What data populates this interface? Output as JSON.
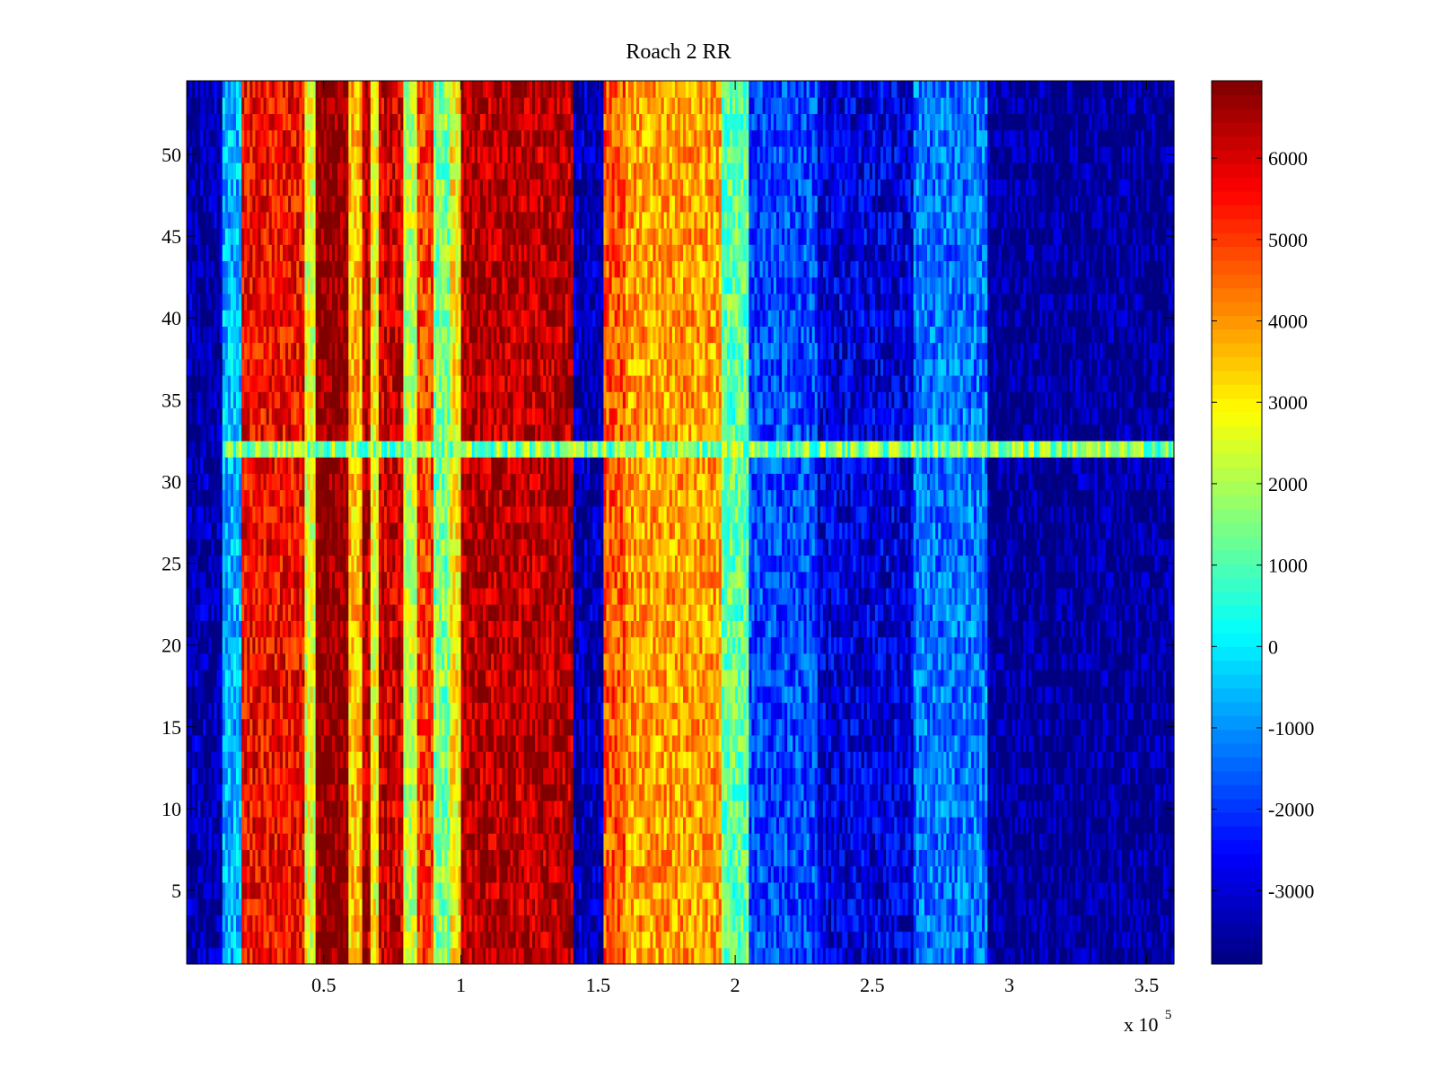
{
  "chart_data": {
    "type": "heatmap",
    "title": "Roach 2 RR",
    "xlabel": "",
    "ylabel": "",
    "x_exponent_label": "x 10",
    "x_exponent_power": "5",
    "xlim": [
      0,
      3.6
    ],
    "ylim": [
      0.5,
      54.5
    ],
    "rows": 54,
    "colormap": "jet",
    "clim": [
      -3900,
      6950
    ],
    "x_ticks": [
      "0.5",
      "1",
      "1.5",
      "2",
      "2.5",
      "3",
      "3.5"
    ],
    "x_tick_values": [
      0.5,
      1,
      1.5,
      2,
      2.5,
      3,
      3.5
    ],
    "y_ticks": [
      "5",
      "10",
      "15",
      "20",
      "25",
      "30",
      "35",
      "40",
      "45",
      "50"
    ],
    "y_tick_values": [
      5,
      10,
      15,
      20,
      25,
      30,
      35,
      40,
      45,
      50
    ],
    "colorbar_ticks": [
      "6000",
      "5000",
      "4000",
      "3000",
      "2000",
      "1000",
      "0",
      "-1000",
      "-2000",
      "-3000"
    ],
    "colorbar_tick_values": [
      6000,
      5000,
      4000,
      3000,
      2000,
      1000,
      0,
      -1000,
      -2000,
      -3000
    ],
    "column_profile": [
      {
        "x0": 0.0,
        "x1": 0.13,
        "value": -3500
      },
      {
        "x0": 0.13,
        "x1": 0.2,
        "value": -600
      },
      {
        "x0": 0.2,
        "x1": 0.43,
        "value": 5600
      },
      {
        "x0": 0.43,
        "x1": 0.47,
        "value": 2500
      },
      {
        "x0": 0.47,
        "x1": 0.59,
        "value": 6900
      },
      {
        "x0": 0.59,
        "x1": 0.64,
        "value": 3500
      },
      {
        "x0": 0.64,
        "x1": 0.67,
        "value": 6300
      },
      {
        "x0": 0.67,
        "x1": 0.7,
        "value": 2800
      },
      {
        "x0": 0.7,
        "x1": 0.79,
        "value": 6100
      },
      {
        "x0": 0.79,
        "x1": 0.84,
        "value": 2200
      },
      {
        "x0": 0.84,
        "x1": 0.9,
        "value": 5000
      },
      {
        "x0": 0.9,
        "x1": 0.96,
        "value": 1500
      },
      {
        "x0": 0.96,
        "x1": 1.0,
        "value": 3000
      },
      {
        "x0": 1.0,
        "x1": 1.41,
        "value": 6400
      },
      {
        "x0": 1.41,
        "x1": 1.52,
        "value": -3400
      },
      {
        "x0": 1.52,
        "x1": 1.6,
        "value": 4700
      },
      {
        "x0": 1.6,
        "x1": 1.95,
        "value": 3900
      },
      {
        "x0": 1.95,
        "x1": 2.05,
        "value": 1200
      },
      {
        "x0": 2.05,
        "x1": 2.3,
        "value": -1800
      },
      {
        "x0": 2.3,
        "x1": 2.65,
        "value": -2900
      },
      {
        "x0": 2.65,
        "x1": 2.92,
        "value": -1300
      },
      {
        "x0": 2.92,
        "x1": 3.6,
        "value": -3700
      }
    ],
    "row_anomaly": {
      "row": 32,
      "value": 1500
    },
    "grid": false
  }
}
